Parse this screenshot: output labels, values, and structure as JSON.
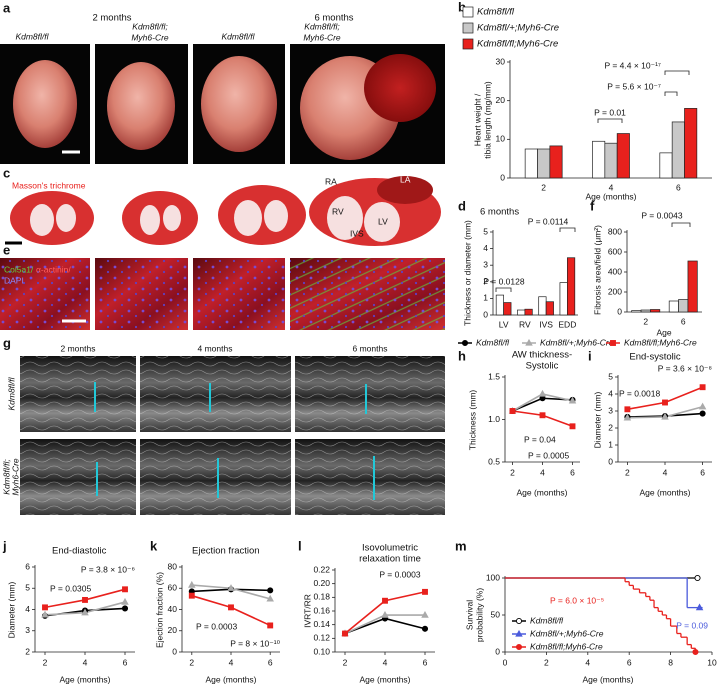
{
  "figure": {
    "a": {
      "panel": "a",
      "times": [
        "2 months",
        "6 months"
      ],
      "labels": [
        [
          "Kdm8fl/fl"
        ],
        [
          "Kdm8fl/fl;",
          "Myh6-Cre"
        ],
        [
          "Kdm8fl/fl"
        ],
        [
          "Kdm8fl/fl;",
          "Myh6-Cre"
        ]
      ]
    },
    "c": {
      "panel": "c",
      "stain": "Masson's trichrome",
      "chambers": [
        "RA",
        "LA",
        "RV",
        "IVS",
        "LV"
      ]
    },
    "e": {
      "panel": "e",
      "stain": [
        "Col5a1/",
        "α-actinin/",
        "DAPI"
      ]
    },
    "g": {
      "panel": "g",
      "times": [
        "2 months",
        "4 months",
        "6 months"
      ],
      "rows": [
        [
          "Kdm8fl/fl"
        ],
        [
          "Kdm8fl/fl;",
          "Myh6-Cre"
        ]
      ]
    }
  },
  "chart_data": [
    {
      "panel": "b",
      "type": "bar",
      "ylabel": [
        "Heart weight /",
        "tibia length (mg/mm)"
      ],
      "xlabel": "Age (months)",
      "categories": [
        "2",
        "4",
        "6"
      ],
      "series": [
        {
          "name": "Kdm8fl/fl",
          "color": "#ffffff",
          "values": [
            7.5,
            9.5,
            6.5
          ]
        },
        {
          "name": "Kdm8fl/+;Myh6-Cre",
          "color": "#c8c8c8",
          "values": [
            7.5,
            9,
            14.5
          ]
        },
        {
          "name": "Kdm8fl/fl;Myh6-Cre",
          "color": "#e8211d",
          "values": [
            8.3,
            11.5,
            18
          ]
        }
      ],
      "ylim": [
        0,
        30
      ],
      "yticks": [
        0,
        10,
        20,
        30
      ],
      "annotations": [
        "P = 0.01",
        "P = 5.6 × 10⁻⁷",
        "P = 4.4 × 10⁻¹⁷"
      ]
    },
    {
      "panel": "d",
      "type": "bar",
      "title": "6 months",
      "ylabel": "Thickness or diameter (mm)",
      "categories": [
        "LV",
        "RV",
        "IVS",
        "EDD"
      ],
      "series": [
        {
          "color": "#ffffff",
          "values": [
            1.2,
            0.3,
            1.1,
            1.95
          ]
        },
        {
          "color": "#e8211d",
          "values": [
            0.75,
            0.35,
            0.8,
            3.45
          ]
        }
      ],
      "ylim": [
        0,
        5
      ],
      "yticks": [
        0,
        1,
        2,
        3,
        4,
        5
      ],
      "annotations": [
        "P = 0.0128",
        "P = 0.0114"
      ]
    },
    {
      "panel": "f",
      "type": "bar",
      "ylabel": "Fibrosis area/field (μm²)",
      "xlabel": "Age",
      "categories": [
        "2",
        "6"
      ],
      "series": [
        {
          "color": "#ffffff",
          "values": [
            15,
            110
          ]
        },
        {
          "color": "#c8c8c8",
          "values": [
            20,
            125
          ]
        },
        {
          "color": "#e8211d",
          "values": [
            25,
            510
          ]
        }
      ],
      "ylim": [
        0,
        800
      ],
      "yticks": [
        0,
        200,
        400,
        600,
        800
      ],
      "annotations": [
        "P = 0.0043"
      ]
    },
    {
      "panel": "h",
      "type": "line",
      "title": [
        "AW thickness-",
        "Systolic"
      ],
      "ylabel": "Thickness (mm)",
      "xlabel": "Age (months)",
      "x": [
        2,
        4,
        6
      ],
      "xlim": [
        1.5,
        6.5
      ],
      "xticks": [
        2,
        4,
        6
      ],
      "series": [
        {
          "name": "Kdm8fl/fl",
          "color": "#000000",
          "values": [
            1.1,
            1.25,
            1.23
          ]
        },
        {
          "name": "Kdm8fl/+;Myh6-Cre",
          "color": "#aaaaaa",
          "values": [
            1.1,
            1.3,
            1.22
          ]
        },
        {
          "name": "Kdm8fl/fl;Myh6-Cre",
          "color": "#e8211d",
          "values": [
            1.1,
            1.05,
            0.92
          ]
        }
      ],
      "ylim": [
        0.5,
        1.5
      ],
      "yticks": [
        0.5,
        {
          "value": 1,
          "label": "1.0"
        },
        1.5
      ],
      "annotations": [
        "P = 0.04",
        "P = 0.0005"
      ]
    },
    {
      "panel": "i",
      "type": "line",
      "title": "End-systolic",
      "ylabel": "Diameter (mm)",
      "xlabel": "Age (months)",
      "x": [
        2,
        4,
        6
      ],
      "xlim": [
        1.5,
        6.5
      ],
      "xticks": [
        2,
        4,
        6
      ],
      "series": [
        {
          "color": "#000000",
          "values": [
            2.65,
            2.7,
            2.85
          ]
        },
        {
          "color": "#aaaaaa",
          "values": [
            2.6,
            2.65,
            3.25
          ]
        },
        {
          "color": "#e8211d",
          "values": [
            3.1,
            3.5,
            4.4
          ]
        }
      ],
      "ylim": [
        0,
        5
      ],
      "yticks": [
        0,
        1,
        2,
        3,
        4,
        5
      ],
      "annotations": [
        "P = 3.6 × 10⁻⁸",
        "P = 0.0018"
      ]
    },
    {
      "panel": "j",
      "type": "line",
      "title": "End-diastolic",
      "ylabel": "Diameter (mm)",
      "xlabel": "Age (months)",
      "x": [
        2,
        4,
        6
      ],
      "xlim": [
        1.5,
        6.5
      ],
      "xticks": [
        2,
        4,
        6
      ],
      "series": [
        {
          "color": "#000000",
          "values": [
            3.7,
            3.95,
            4.05
          ]
        },
        {
          "color": "#aaaaaa",
          "values": [
            3.75,
            3.85,
            4.35
          ]
        },
        {
          "color": "#e8211d",
          "values": [
            4.1,
            4.45,
            4.95
          ]
        }
      ],
      "ylim": [
        2,
        6
      ],
      "yticks": [
        2,
        3,
        4,
        5,
        6
      ],
      "annotations": [
        "P = 0.0305",
        "P = 3.8 × 10⁻⁶"
      ]
    },
    {
      "panel": "k",
      "type": "line",
      "title": "Ejection fraction",
      "ylabel": "Ejection fraction (%)",
      "xlabel": "Age (months)",
      "x": [
        2,
        4,
        6
      ],
      "xlim": [
        1.5,
        6.5
      ],
      "xticks": [
        2,
        4,
        6
      ],
      "series": [
        {
          "color": "#000000",
          "values": [
            57,
            59,
            58
          ]
        },
        {
          "color": "#aaaaaa",
          "values": [
            63,
            60,
            50
          ]
        },
        {
          "color": "#e8211d",
          "values": [
            53,
            42,
            25
          ]
        }
      ],
      "ylim": [
        0,
        80
      ],
      "yticks": [
        0,
        20,
        40,
        60,
        80
      ],
      "annotations": [
        "P = 0.0003",
        "P = 8 × 10⁻¹⁰"
      ]
    },
    {
      "panel": "l",
      "type": "line",
      "title": [
        "Isovolumetric",
        "relaxation time"
      ],
      "ylabel": "IVRT/RR",
      "xlabel": "Age (months)",
      "x": [
        2,
        4,
        6
      ],
      "xlim": [
        1.5,
        6.5
      ],
      "xticks": [
        2,
        4,
        6
      ],
      "series": [
        {
          "color": "#000000",
          "values": [
            0.127,
            0.149,
            0.134
          ]
        },
        {
          "color": "#aaaaaa",
          "values": [
            0.127,
            0.154,
            0.154
          ]
        },
        {
          "color": "#e8211d",
          "values": [
            0.127,
            0.175,
            0.188
          ]
        }
      ],
      "ylim": [
        0.1,
        0.22
      ],
      "yticks": [
        {
          "value": 0.1,
          "label": "0.10"
        },
        0.12,
        0.14,
        0.16,
        0.18,
        {
          "value": 0.2,
          "label": "0.20"
        },
        0.22
      ],
      "annotations": [
        "P = 0.0003"
      ]
    },
    {
      "panel": "m",
      "type": "step",
      "ylabel": [
        "Survival",
        "probability (%)"
      ],
      "xlabel": "Age (months)",
      "xlim": [
        0,
        10
      ],
      "xticks": [
        0,
        2,
        4,
        6,
        8,
        10
      ],
      "series": [
        {
          "name": "Kdm8fl/fl",
          "color": "#000000",
          "x": [
            0,
            9.3
          ],
          "values": [
            100,
            100
          ]
        },
        {
          "name": "Kdm8fl/+;Myh6-Cre",
          "color": "#4b5bdc",
          "x": [
            0,
            8.8,
            9.4
          ],
          "values": [
            100,
            60,
            60
          ]
        },
        {
          "name": "Kdm8fl/fl;Myh6-Cre",
          "color": "#e8211d",
          "x": [
            0,
            5.8,
            6.0,
            6.2,
            6.5,
            6.8,
            7.0,
            7.2,
            7.4,
            7.6,
            7.8,
            8.0,
            8.3,
            8.5,
            8.8,
            9.0,
            9.2
          ],
          "values": [
            100,
            95,
            90,
            85,
            80,
            75,
            70,
            60,
            55,
            50,
            45,
            35,
            25,
            20,
            10,
            5,
            0
          ]
        }
      ],
      "ylim": [
        0,
        100
      ],
      "yticks": [
        0,
        50,
        100
      ],
      "annotations": [
        "P = 6.0 × 10⁻⁵",
        "P = 0.09"
      ]
    }
  ]
}
